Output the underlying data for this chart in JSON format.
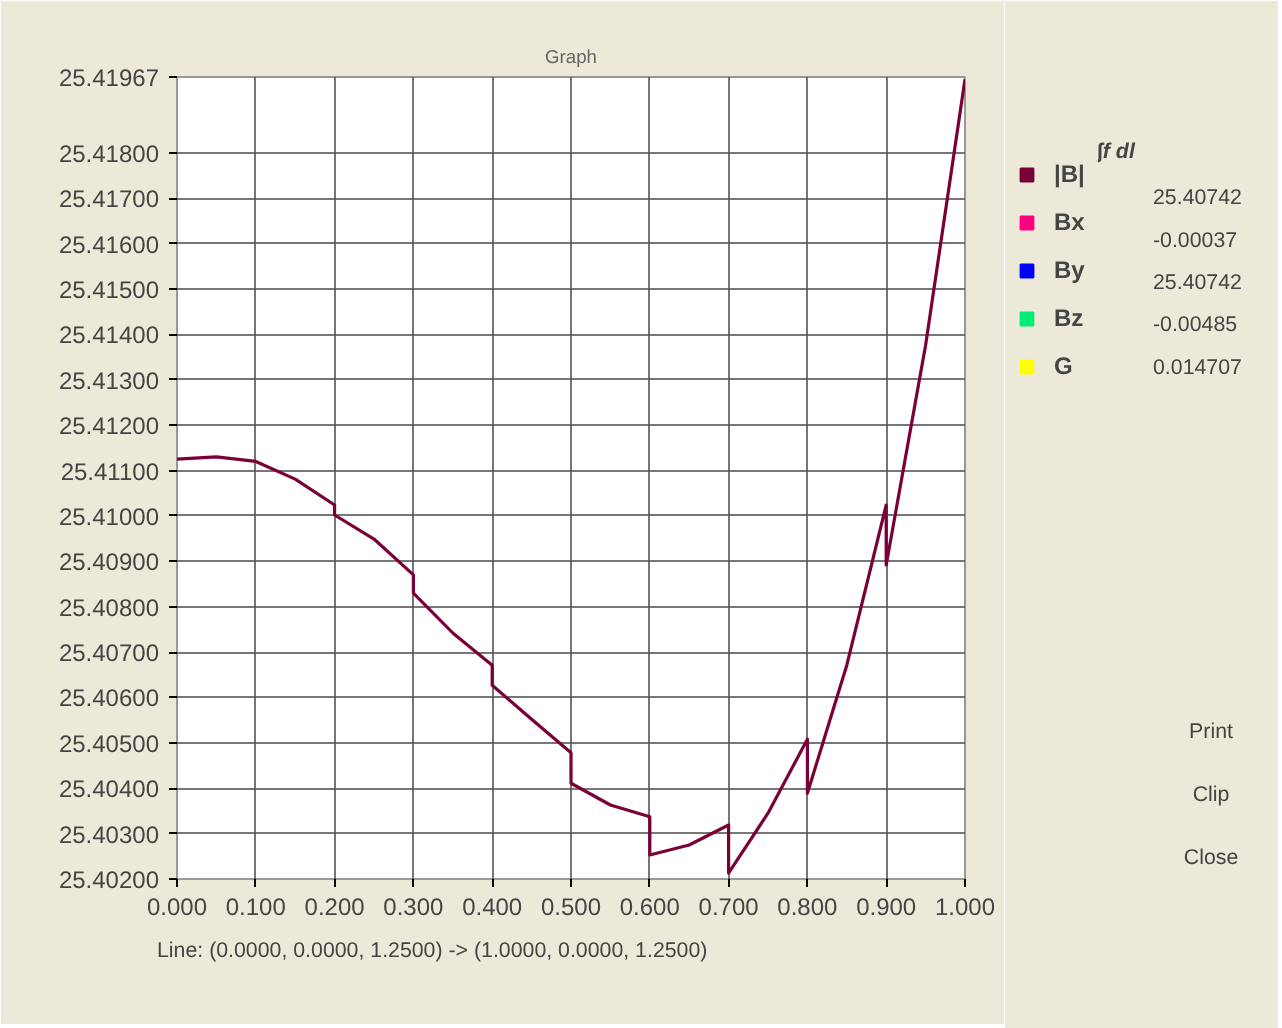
{
  "chart_data": {
    "type": "line",
    "title": "Graph",
    "x": [
      0,
      0.05,
      0.1,
      0.15,
      0.2,
      0.2,
      0.25,
      0.3,
      0.3,
      0.35,
      0.4,
      0.4,
      0.45,
      0.5,
      0.5,
      0.55,
      0.6,
      0.6,
      0.65,
      0.7,
      0.7,
      0.75,
      0.8,
      0.8,
      0.85,
      0.9,
      0.9,
      0.95,
      1.0
    ],
    "series": [
      {
        "name": "|B|",
        "color": "#7a0038",
        "values": [
          25.41125,
          25.4113,
          25.4112,
          25.41081,
          25.41024,
          25.41002,
          25.40949,
          25.4087,
          25.4083,
          25.40742,
          25.40671,
          25.40627,
          25.40552,
          25.40478,
          25.40411,
          25.40363,
          25.40337,
          25.40253,
          25.40275,
          25.40319,
          25.40213,
          25.40345,
          25.40508,
          25.40389,
          25.40671,
          25.41024,
          25.40892,
          25.41376,
          25.41962
        ]
      },
      {
        "name": "Bx",
        "color": "#ff0080",
        "values": [
          null,
          null,
          null,
          null,
          null,
          null,
          null,
          null,
          null,
          null,
          null,
          null,
          null,
          null,
          null,
          null,
          null,
          null,
          null,
          null,
          null,
          null,
          null,
          null,
          null,
          null,
          null,
          null,
          null
        ]
      },
      {
        "name": "By",
        "color": "#0000ff",
        "values": [
          null,
          null,
          null,
          null,
          null,
          null,
          null,
          null,
          null,
          null,
          null,
          null,
          null,
          null,
          null,
          null,
          null,
          null,
          null,
          null,
          null,
          null,
          null,
          null,
          null,
          null,
          null,
          null,
          null
        ]
      },
      {
        "name": "Bz",
        "color": "#00ee77",
        "values": [
          null,
          null,
          null,
          null,
          null,
          null,
          null,
          null,
          null,
          null,
          null,
          null,
          null,
          null,
          null,
          null,
          null,
          null,
          null,
          null,
          null,
          null,
          null,
          null,
          null,
          null,
          null,
          null,
          null
        ]
      },
      {
        "name": "G",
        "color": "#ffff00",
        "values": [
          null,
          null,
          null,
          null,
          null,
          null,
          null,
          null,
          null,
          null,
          null,
          null,
          null,
          null,
          null,
          null,
          null,
          null,
          null,
          null,
          null,
          null,
          null,
          null,
          null,
          null,
          null,
          null,
          null
        ]
      }
    ],
    "xlim": [
      0,
      1.0
    ],
    "xticks": [
      {
        "value": 0,
        "label": "0.000"
      },
      {
        "value": 0.1,
        "label": "0.100"
      },
      {
        "value": 0.2,
        "label": "0.200"
      },
      {
        "value": 0.3,
        "label": "0.300"
      },
      {
        "value": 0.4,
        "label": "0.400"
      },
      {
        "value": 0.5,
        "label": "0.500"
      },
      {
        "value": 0.6,
        "label": "0.600"
      },
      {
        "value": 0.7,
        "label": "0.700"
      },
      {
        "value": 0.8,
        "label": "0.800"
      },
      {
        "value": 0.9,
        "label": "0.900"
      },
      {
        "value": 1.0,
        "label": "1.000"
      }
    ],
    "ylim": [
      25.402,
      25.41967
    ],
    "yticks": [
      {
        "value": 25.402,
        "label": "25.40200"
      },
      {
        "value": 25.403,
        "label": "25.40300"
      },
      {
        "value": 25.404,
        "label": "25.40400"
      },
      {
        "value": 25.405,
        "label": "25.40500"
      },
      {
        "value": 25.406,
        "label": "25.40600"
      },
      {
        "value": 25.407,
        "label": "25.40700"
      },
      {
        "value": 25.408,
        "label": "25.40800"
      },
      {
        "value": 25.409,
        "label": "25.40900"
      },
      {
        "value": 25.41,
        "label": "25.41000"
      },
      {
        "value": 25.411,
        "label": "25.41100"
      },
      {
        "value": 25.412,
        "label": "25.41200"
      },
      {
        "value": 25.413,
        "label": "25.41300"
      },
      {
        "value": 25.414,
        "label": "25.41400"
      },
      {
        "value": 25.415,
        "label": "25.41500"
      },
      {
        "value": 25.416,
        "label": "25.41600"
      },
      {
        "value": 25.417,
        "label": "25.41700"
      },
      {
        "value": 25.418,
        "label": "25.41800"
      },
      25.41967
    ],
    "grid": true,
    "legend": "right",
    "marker": "none",
    "line_style": "solid",
    "annotations": [
      "∫f dl",
      "25.40742",
      "-0.00037",
      "25.40742",
      "-0.00485",
      "0.014707",
      "Print",
      "Clip",
      "Close",
      "Line: (0.0000, 0.0000, 1.2500) -> (1.0000, 0.0000, 1.2500)"
    ]
  }
}
